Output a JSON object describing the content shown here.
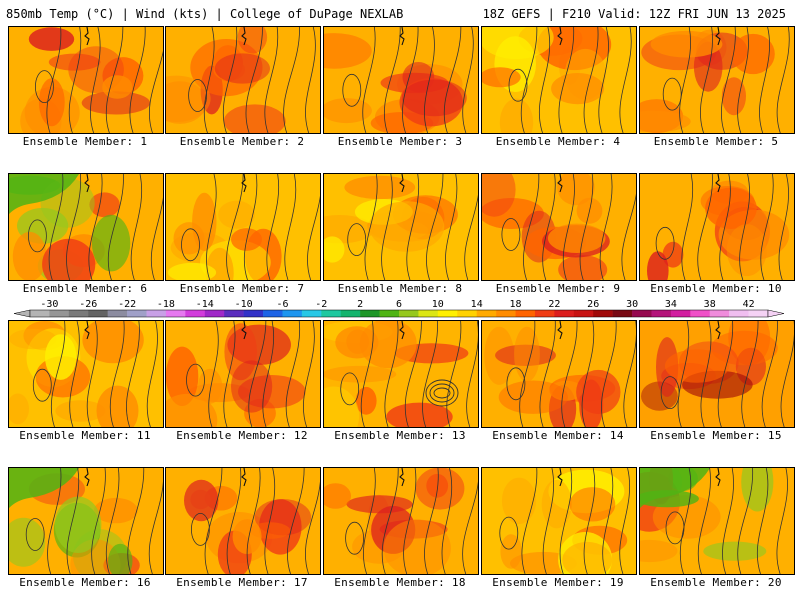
{
  "header": {
    "left_title": "850mb Temp (°C) | Wind (kts) | College of DuPage NEXLAB",
    "right_title": "18Z GEFS | F210 Valid: 12Z FRI JUN 13 2025"
  },
  "label_prefix": "Ensemble Member: ",
  "members": [
    {
      "number": "1",
      "variant": "hot"
    },
    {
      "number": "2",
      "variant": "hot"
    },
    {
      "number": "3",
      "variant": "hot"
    },
    {
      "number": "4",
      "variant": "warm"
    },
    {
      "number": "5",
      "variant": "hot"
    },
    {
      "number": "6",
      "variant": "cool"
    },
    {
      "number": "7",
      "variant": "warm"
    },
    {
      "number": "8",
      "variant": "warm"
    },
    {
      "number": "9",
      "variant": "hot"
    },
    {
      "number": "10",
      "variant": "hot"
    },
    {
      "number": "11",
      "variant": "warm"
    },
    {
      "number": "12",
      "variant": "hot"
    },
    {
      "number": "13",
      "variant": "low"
    },
    {
      "number": "14",
      "variant": "hot"
    },
    {
      "number": "15",
      "variant": "veryhot"
    },
    {
      "number": "16",
      "variant": "cool"
    },
    {
      "number": "17",
      "variant": "hot"
    },
    {
      "number": "18",
      "variant": "hot"
    },
    {
      "number": "19",
      "variant": "warm"
    },
    {
      "number": "20",
      "variant": "cool"
    }
  ],
  "colorbar": {
    "ticks": [
      "-30",
      "-26",
      "-22",
      "-18",
      "-14",
      "-10",
      "-6",
      "-2",
      "2",
      "6",
      "10",
      "14",
      "18",
      "22",
      "26",
      "30",
      "34",
      "38",
      "42"
    ],
    "colors": [
      "#b4b4b4",
      "#969696",
      "#7a7a7a",
      "#646464",
      "#8c8ca0",
      "#a0a0c8",
      "#c8a0e6",
      "#e678f0",
      "#d23cdc",
      "#a028c8",
      "#5a2dbe",
      "#3232c8",
      "#1e64e6",
      "#1e96f0",
      "#28c8e6",
      "#1ec8a0",
      "#14b46e",
      "#1e9628",
      "#50b414",
      "#96c81e",
      "#dce614",
      "#fff000",
      "#ffd200",
      "#ffaa00",
      "#ff8c00",
      "#ff6400",
      "#f03c14",
      "#dc1e1e",
      "#c81414",
      "#a00a0a",
      "#780a14",
      "#960a50",
      "#b4147a",
      "#d21ea0",
      "#f050c8",
      "#f08cdc",
      "#f0bef0",
      "#f5d2f5"
    ]
  }
}
